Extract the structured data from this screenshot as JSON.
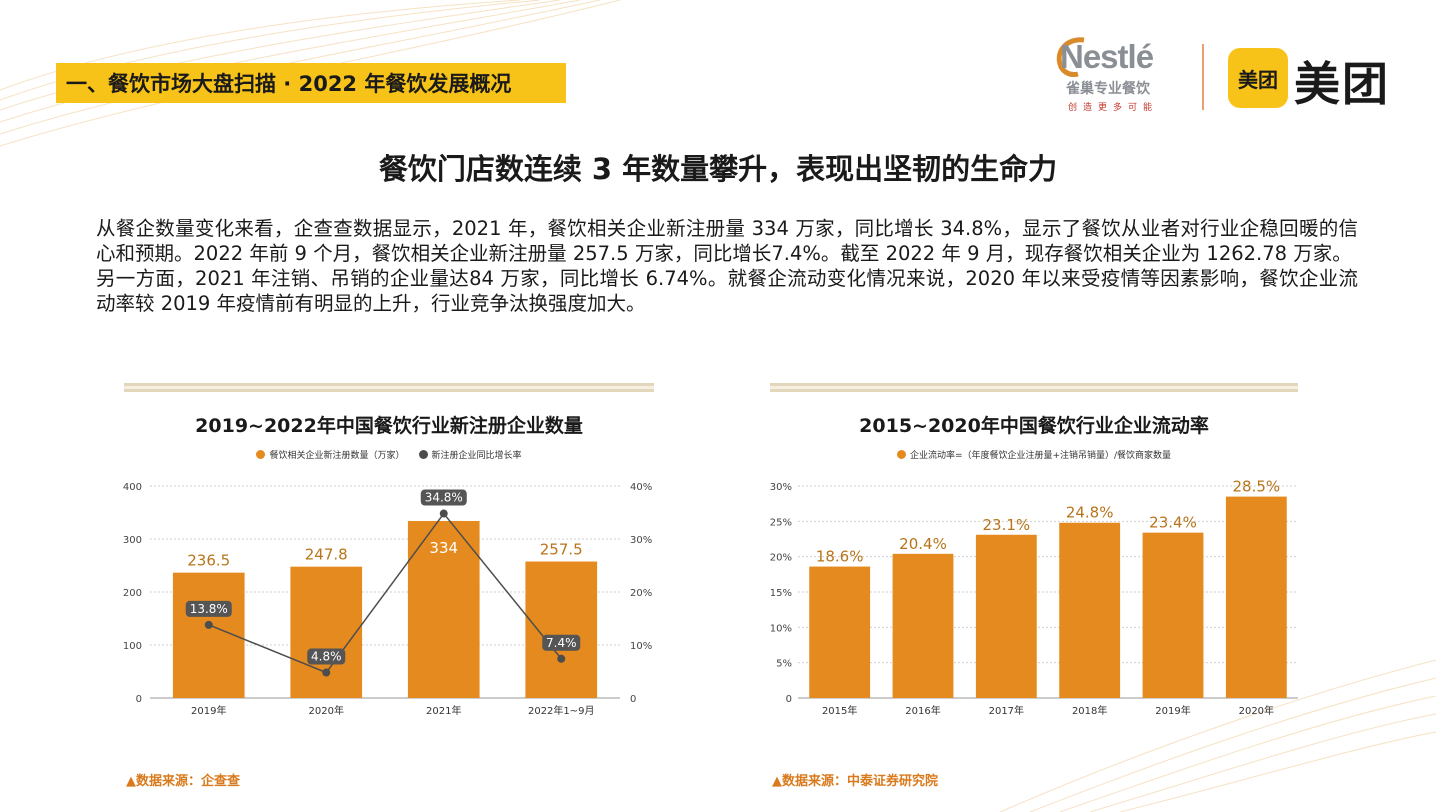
{
  "header": {
    "section_label": "一、餐饮市场大盘扫描 · 2022 年餐饮发展概况",
    "logos": {
      "nestle_word": "Nestlé",
      "nestle_sub": "雀巢专业餐饮",
      "nestle_tagline": "创造更多可能",
      "meituan_badge": "美团",
      "meituan_word": "美团"
    }
  },
  "main_title": "餐饮门店数连续 3 年数量攀升，表现出坚韧的生命力",
  "body": {
    "paragraph1": "从餐企数量变化来看，企查查数据显示，2021 年，餐饮相关企业新注册量 334 万家，同比增长 34.8%，显示了餐饮从业者对行业企稳回暖的信心和预期。2022 年前 9 个月，餐饮相关企业新注册量 257.5 万家，同比增长7.4%。截至 2022 年 9 月，现存餐饮相关企业为 1262.78 万家。",
    "paragraph2": "另一方面，2021  年注销、吊销的企业量达84 万家，同比增长  6.74%。就餐企流动变化情况来说，2020  年以来受疫情等因素影响，餐饮企业流动率较 2019 年疫情前有明显的上升，行业竞争汰换强度加大。"
  },
  "colors": {
    "accent_yellow": "#f7c318",
    "bar_orange": "#e48a1e",
    "line_gray": "#4d4d4d",
    "source_orange": "#d97a1c",
    "value_label_gold": "#b8741a"
  },
  "chart_data": [
    {
      "type": "bar",
      "title": "2019~2022年中国餐饮行业新注册企业数量",
      "categories": [
        "2019年",
        "2020年",
        "2021年",
        "2022年1~9月"
      ],
      "series": [
        {
          "name": "餐饮相关企业新注册数量（万家）",
          "type": "bar",
          "axis": "left",
          "values": [
            236.5,
            247.8,
            334,
            257.5
          ],
          "labels": [
            "236.5",
            "247.8",
            "334",
            "257.5"
          ]
        },
        {
          "name": "新注册企业同比增长率",
          "type": "line",
          "axis": "right",
          "values": [
            13.8,
            4.8,
            34.8,
            7.4
          ],
          "labels": [
            "13.8%",
            "4.8%",
            "34.8%",
            "7.4%"
          ]
        }
      ],
      "ylim": [
        0,
        400
      ],
      "yticks": [
        "0",
        "100",
        "200",
        "300",
        "400"
      ],
      "y2lim": [
        0,
        40
      ],
      "y2ticks": [
        "0",
        "10%",
        "20%",
        "30%",
        "40%"
      ],
      "grid": true,
      "legend": "top-center",
      "source": "▲数据来源：企查查"
    },
    {
      "type": "bar",
      "title": "2015~2020年中国餐饮行业企业流动率",
      "categories": [
        "2015年",
        "2016年",
        "2017年",
        "2018年",
        "2019年",
        "2020年"
      ],
      "series": [
        {
          "name": "企业流动率=（年度餐饮企业注册量+注销吊销量）/餐饮商家数量",
          "type": "bar",
          "axis": "left",
          "values": [
            18.6,
            20.4,
            23.1,
            24.8,
            23.4,
            28.5
          ],
          "labels": [
            "18.6%",
            "20.4%",
            "23.1%",
            "24.8%",
            "23.4%",
            "28.5%"
          ]
        }
      ],
      "ylim": [
        0,
        30
      ],
      "yticks": [
        "0",
        "5%",
        "10%",
        "15%",
        "20%",
        "25%",
        "30%"
      ],
      "grid": true,
      "legend": "top-center",
      "source": "▲数据来源：中泰证券研究院"
    }
  ]
}
